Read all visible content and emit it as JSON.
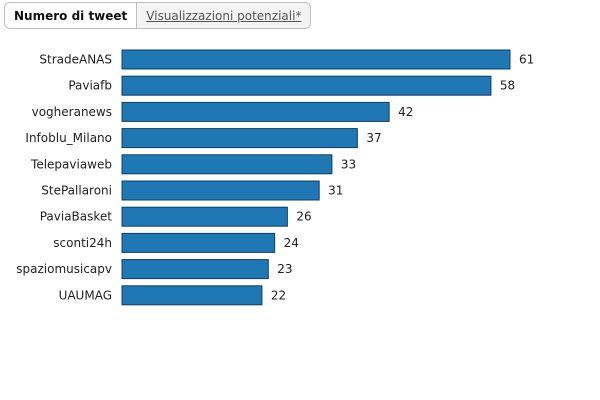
{
  "tabs": [
    {
      "label": "Numero di tweet",
      "active": true
    },
    {
      "label": "Visualizzazioni potenziali*",
      "active": false
    }
  ],
  "colors": {
    "bar": "#1f77b4",
    "bar_stroke": "#0d3f66"
  },
  "chart_data": {
    "type": "bar",
    "orientation": "horizontal",
    "categories": [
      "StradeANAS",
      "Paviafb",
      "vogheranews",
      "Infoblu_Milano",
      "Telepaviaweb",
      "StePallaroni",
      "PaviaBasket",
      "sconti24h",
      "spaziomusicapv",
      "UAUMAG"
    ],
    "values": [
      61,
      58,
      42,
      37,
      33,
      31,
      26,
      24,
      23,
      22
    ],
    "xlim": [
      0,
      61
    ],
    "grid": false,
    "legend": "none"
  }
}
